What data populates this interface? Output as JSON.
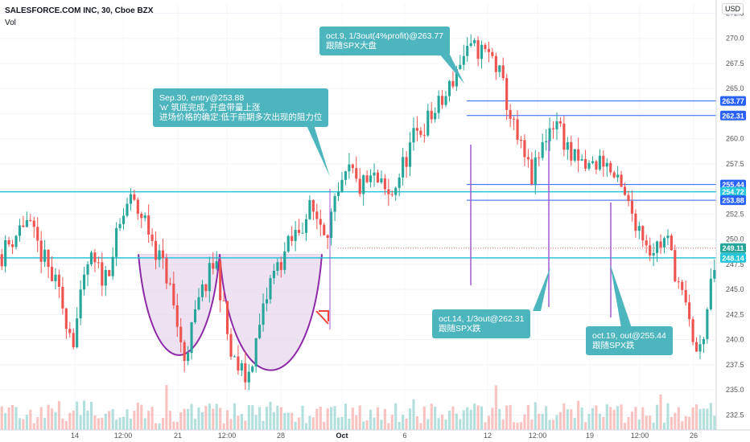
{
  "header": {
    "title": "SALESFORCE.COM INC, 30, Cboe BZX",
    "volume_label": "Vol",
    "currency": "USD"
  },
  "colors": {
    "up": "#26a69a",
    "down": "#ef5350",
    "support_line": "#26c6da",
    "level_line": "#2962ff",
    "pattern_fill": "#e6d4ec",
    "pattern_stroke": "#8e2aa8",
    "marker": "#a25bd0",
    "callout": "#4db5be",
    "arrow": "#f44336"
  },
  "chart_data": {
    "type": "candlestick",
    "title": "SALESFORCE.COM INC, 30, Cboe BZX",
    "ylim": [
      231,
      273.5
    ],
    "y_ticks": [
      232.5,
      235.0,
      237.5,
      240.0,
      242.5,
      245.0,
      247.5,
      250.0,
      252.5,
      255.0,
      257.5,
      260.0,
      262.5,
      265.0,
      267.5,
      270.0,
      272.5
    ],
    "x_tick_labels": [
      "14",
      "12:00",
      "21",
      "12:00",
      "28",
      "Oct",
      "6",
      "12",
      "12:00",
      "19",
      "12:00",
      "26"
    ],
    "price_path": [
      [
        0,
        248.5
      ],
      [
        3,
        252
      ],
      [
        7,
        245
      ],
      [
        9,
        240
      ],
      [
        11,
        248
      ],
      [
        13,
        246
      ],
      [
        16,
        254
      ],
      [
        18,
        252
      ],
      [
        21,
        246
      ],
      [
        23,
        238
      ],
      [
        25,
        244
      ],
      [
        27,
        248
      ],
      [
        29,
        238
      ],
      [
        31,
        236
      ],
      [
        34,
        246
      ],
      [
        36,
        249
      ],
      [
        39,
        253
      ],
      [
        41,
        251
      ],
      [
        43,
        255
      ],
      [
        44,
        257
      ],
      [
        45,
        255
      ],
      [
        47,
        256
      ],
      [
        49,
        254
      ],
      [
        52,
        260
      ],
      [
        54,
        262
      ],
      [
        56,
        264
      ],
      [
        58,
        268
      ],
      [
        60,
        269
      ],
      [
        62,
        268
      ],
      [
        63,
        266
      ],
      [
        65,
        260
      ],
      [
        67,
        256
      ],
      [
        69,
        261
      ],
      [
        70,
        262
      ],
      [
        72,
        258
      ],
      [
        74,
        257
      ],
      [
        76,
        258
      ],
      [
        78,
        255
      ],
      [
        80,
        252
      ],
      [
        82,
        249
      ],
      [
        84,
        250
      ],
      [
        85,
        247
      ],
      [
        87,
        241
      ],
      [
        88,
        238
      ],
      [
        90,
        247
      ]
    ],
    "horizontal_levels": [
      {
        "label": "263.77",
        "value": 263.77,
        "style": "level"
      },
      {
        "label": "262.31",
        "value": 262.31,
        "style": "level"
      },
      {
        "label": "255.44",
        "value": 255.44,
        "style": "level"
      },
      {
        "label": "254.72",
        "value": 254.72,
        "style": "support"
      },
      {
        "label": "253.88",
        "value": 253.88,
        "style": "level"
      },
      {
        "label": "249.11",
        "value": 249.11,
        "style": "price"
      },
      {
        "label": "248.14",
        "value": 248.14,
        "style": "support"
      }
    ],
    "annotations": [
      {
        "lines": [
          "Sep.30, entry@253.88",
          "'w' 筑底完成, 开盘带量上涨",
          "进场价格的确定:低于前期多次出现的阻力位"
        ]
      },
      {
        "lines": [
          "oct.9, 1/3out(4%profit)@263.77",
          "跟随SPX大盘"
        ]
      },
      {
        "lines": [
          "oct.14, 1/3out@262.31",
          "跟随SPX跌"
        ]
      },
      {
        "lines": [
          "oct.19, out@255.44",
          "跟随SPX跌"
        ]
      }
    ]
  }
}
